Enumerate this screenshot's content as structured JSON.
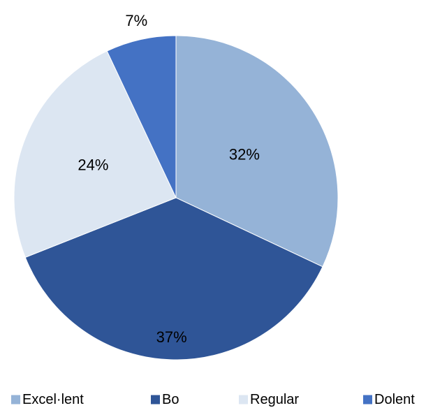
{
  "chart_data": {
    "type": "pie",
    "categories": [
      "Excel·lent",
      "Bo",
      "Regular",
      "Dolent"
    ],
    "values": [
      32,
      37,
      24,
      7
    ],
    "data_labels": [
      "32%",
      "37%",
      "24%",
      "7%"
    ],
    "colors": [
      "#95b3d7",
      "#2f5597",
      "#dce6f2",
      "#4472c4"
    ],
    "start_angle_deg": 0,
    "direction": "clockwise",
    "legend_position": "bottom"
  }
}
